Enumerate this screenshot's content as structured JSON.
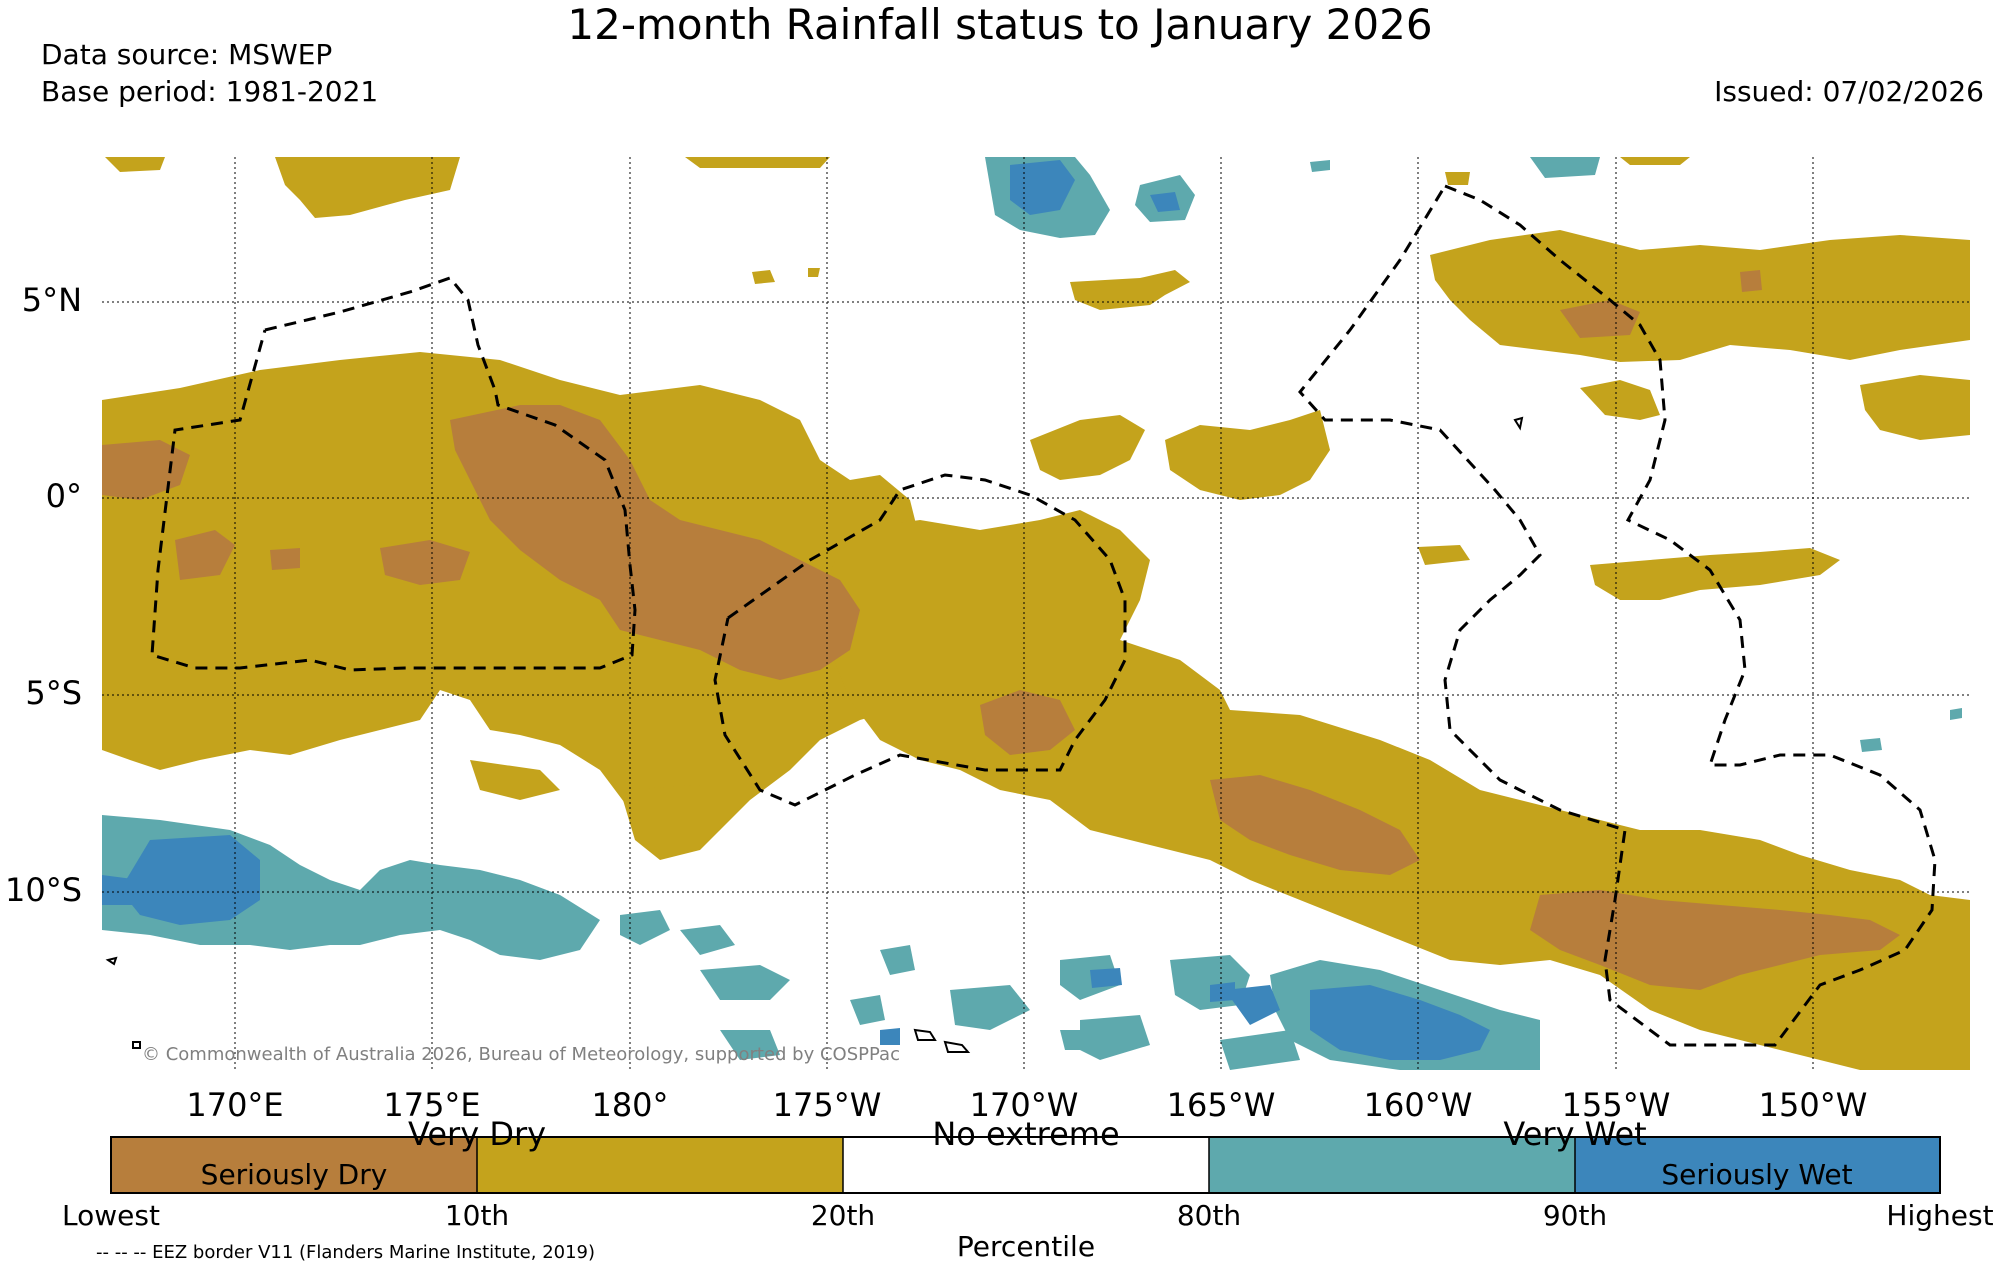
{
  "title": "12-month Rainfall status to January 2026",
  "data_source": "Data source: MSWEP",
  "base_period": "Base period: 1981-2021",
  "issued": "Issued: 07/02/2026",
  "copyright": "© Commonwealth of Australia 2026, Bureau of Meteorology, supported by COSPPac",
  "eez_note": "-- -- -- EEZ border V11 (Flanders Marine Institute, 2019)",
  "lat_ticks": [
    "5°N",
    "0°",
    "5°S",
    "10°S"
  ],
  "lon_ticks": [
    "170°E",
    "175°E",
    "180°",
    "175°W",
    "170°W",
    "165°W",
    "160°W",
    "155°W",
    "150°W"
  ],
  "legend": {
    "categories": [
      "Very Dry",
      "No extreme",
      "Very Wet"
    ],
    "inner_labels": [
      "Seriously Dry",
      "Seriously Wet"
    ],
    "percentiles": [
      "Lowest",
      "10th",
      "20th",
      "80th",
      "90th",
      "Highest"
    ],
    "axis_label": "Percentile",
    "colors": {
      "seriously_dry": "#b77e3c",
      "very_dry": "#c4a31c",
      "no_extreme": "#ffffff",
      "very_wet": "#5ea9ad",
      "seriously_wet": "#3c86bb"
    }
  }
}
